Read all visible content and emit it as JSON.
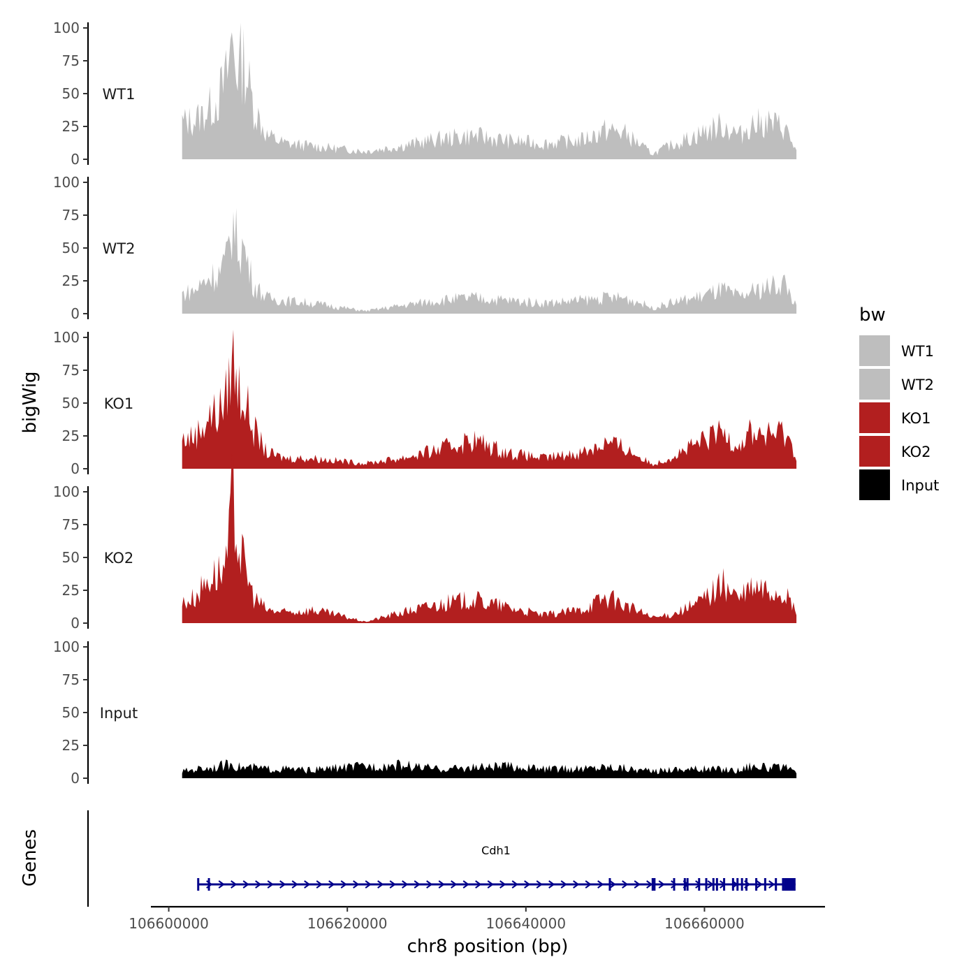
{
  "chart_data": {
    "type": "area",
    "title": "",
    "xlabel": "chr8 position (bp)",
    "ylabel": "bigWig",
    "gene_track_label": "Genes",
    "xlim": [
      106598000,
      106673500
    ],
    "x_range_data": [
      106601500,
      106670300
    ],
    "x_ticks": [
      106600000,
      106620000,
      106640000,
      106660000
    ],
    "x_tick_labels": [
      "106600000",
      "106620000",
      "106640000",
      "106660000"
    ],
    "ylim": [
      0,
      100
    ],
    "y_ticks": [
      0,
      25,
      50,
      75,
      100
    ],
    "y_tick_labels": [
      "0",
      "25",
      "50",
      "75",
      "100"
    ],
    "grid": false,
    "legend": {
      "title": "bw",
      "position": "right",
      "entries": [
        {
          "label": "WT1",
          "color": "#bebebe"
        },
        {
          "label": "WT2",
          "color": "#bebebe"
        },
        {
          "label": "KO1",
          "color": "#b21f1f"
        },
        {
          "label": "KO2",
          "color": "#b21f1f"
        },
        {
          "label": "Input",
          "color": "#000000"
        }
      ]
    },
    "series": [
      {
        "name": "WT1",
        "color": "#bebebe",
        "x": [
          106601500,
          106603000,
          106604500,
          106605500,
          106606500,
          106607100,
          106607600,
          106608400,
          106609500,
          106611000,
          106613000,
          106616000,
          106619000,
          106622000,
          106626000,
          106630000,
          106634000,
          106638000,
          106642000,
          106646000,
          106649000,
          106651000,
          106653000,
          106654200,
          106656000,
          106659000,
          106662000,
          106664000,
          106665000,
          106667000,
          106669000,
          106670300
        ],
        "values": [
          28,
          30,
          38,
          46,
          62,
          92,
          70,
          75,
          40,
          18,
          12,
          10,
          8,
          6,
          10,
          15,
          18,
          14,
          12,
          14,
          22,
          20,
          10,
          4,
          10,
          18,
          26,
          18,
          26,
          28,
          24,
          6
        ]
      },
      {
        "name": "WT2",
        "color": "#bebebe",
        "x": [
          106601500,
          106603000,
          106604500,
          106605500,
          106606500,
          106607100,
          106607600,
          106608400,
          106609500,
          106611000,
          106613000,
          106616000,
          106619000,
          106622000,
          106626000,
          106630000,
          106634000,
          106638000,
          106642000,
          106646000,
          106649000,
          106651000,
          106653000,
          106654200,
          106656000,
          106659000,
          106662000,
          106664000,
          106665000,
          106667000,
          106669000,
          106670300
        ],
        "values": [
          15,
          18,
          28,
          30,
          40,
          72,
          55,
          50,
          22,
          12,
          10,
          8,
          5,
          2,
          6,
          10,
          12,
          10,
          8,
          10,
          12,
          12,
          8,
          4,
          8,
          12,
          18,
          12,
          16,
          20,
          24,
          5
        ]
      },
      {
        "name": "KO1",
        "color": "#b21f1f",
        "x": [
          106601500,
          106603000,
          106604500,
          106605500,
          106606500,
          106607100,
          106607600,
          106608400,
          106609500,
          106611000,
          106613000,
          106616000,
          106619000,
          106622000,
          106626000,
          106630000,
          106634000,
          106638000,
          106642000,
          106646000,
          106649000,
          106651000,
          106653000,
          106654200,
          106656000,
          106659000,
          106662000,
          106664000,
          106665000,
          106667000,
          106669000,
          106670300
        ],
        "values": [
          22,
          25,
          40,
          42,
          55,
          88,
          65,
          55,
          30,
          12,
          8,
          8,
          6,
          4,
          8,
          14,
          22,
          12,
          8,
          12,
          20,
          16,
          8,
          3,
          8,
          18,
          28,
          18,
          28,
          25,
          28,
          10
        ]
      },
      {
        "name": "KO2",
        "color": "#b21f1f",
        "x": [
          106601500,
          106603000,
          106604500,
          106605500,
          106606500,
          106607100,
          106607600,
          106608400,
          106609500,
          106611000,
          106613000,
          106616000,
          106619000,
          106622000,
          106626000,
          106630000,
          106634000,
          106638000,
          106642000,
          106646000,
          106649000,
          106651000,
          106653000,
          106654200,
          106656000,
          106659000,
          106662000,
          106664000,
          106665000,
          106667000,
          106669000,
          106670300
        ],
        "values": [
          15,
          20,
          35,
          38,
          42,
          95,
          68,
          45,
          20,
          10,
          8,
          10,
          6,
          1,
          8,
          14,
          18,
          12,
          6,
          10,
          20,
          14,
          8,
          4,
          6,
          14,
          30,
          18,
          26,
          25,
          22,
          8
        ]
      },
      {
        "name": "Input",
        "color": "#000000",
        "x": [
          106601500,
          106603000,
          106604500,
          106605500,
          106606500,
          106607100,
          106607600,
          106608400,
          106609500,
          106611000,
          106613000,
          106616000,
          106619000,
          106622000,
          106626000,
          106630000,
          106634000,
          106638000,
          106642000,
          106646000,
          106649000,
          106651000,
          106653000,
          106654200,
          106656000,
          106659000,
          106662000,
          106664000,
          106665000,
          106667000,
          106669000,
          106670300
        ],
        "values": [
          5,
          7,
          8,
          9,
          10,
          12,
          9,
          8,
          8,
          7,
          7,
          6,
          8,
          9,
          10,
          7,
          8,
          9,
          7,
          7,
          9,
          8,
          6,
          5,
          7,
          7,
          7,
          6,
          10,
          8,
          8,
          4
        ]
      }
    ],
    "gene": {
      "name": "Cdh1",
      "strand": "+",
      "start": 106603300,
      "end": 106670200,
      "color": "#00008b",
      "exons": [
        106603300,
        106604500,
        106649400,
        106654200,
        106654400,
        106656600,
        106657800,
        106658100,
        106659400,
        106660200,
        106661000,
        106661400,
        106662200,
        106663200,
        106663700,
        106664200,
        106664700,
        106665800,
        106666800,
        106668000,
        106668800
      ]
    }
  }
}
